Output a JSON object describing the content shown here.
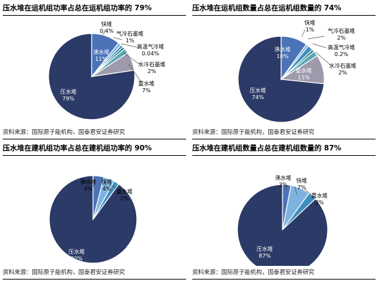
{
  "source_note": "资料来源：国际原子能机构，国泰君安证券研究",
  "chart_data": [
    {
      "type": "pie",
      "title": "压水堆在运机组功率占总在运机组功率的 79%",
      "slices": [
        {
          "name": "压水堆",
          "value": 79,
          "display": "79%",
          "color": "#2b3a66"
        },
        {
          "name": "沸水堆",
          "value": 11,
          "display": "11%",
          "color": "#4a73b8"
        },
        {
          "name": "快堆",
          "value": 0.4,
          "display": "0.4%",
          "color": "#7eb3df"
        },
        {
          "name": "气冷石墨堆",
          "value": 1,
          "display": "1%",
          "color": "#3d8fbf"
        },
        {
          "name": "高温气冷堆",
          "value": 0.04,
          "display": "0.04%",
          "color": "#1f6e7a"
        },
        {
          "name": "水冷石墨堆",
          "value": 2,
          "display": "2%",
          "color": "#5aa7b5"
        },
        {
          "name": "重水堆",
          "value": 7,
          "display": "7%",
          "color": "#9e9aac"
        }
      ]
    },
    {
      "type": "pie",
      "title": "压水堆在运机组数量占总在运机组数量的 74%",
      "slices": [
        {
          "name": "压水堆",
          "value": 74,
          "display": "74%",
          "color": "#2b3a66"
        },
        {
          "name": "沸水堆",
          "value": 10,
          "display": "10%",
          "color": "#4a73b8"
        },
        {
          "name": "快堆",
          "value": 1,
          "display": "1%",
          "color": "#7eb3df"
        },
        {
          "name": "气冷石墨堆",
          "value": 2,
          "display": "2%",
          "color": "#3d8fbf"
        },
        {
          "name": "高温气冷堆",
          "value": 0.2,
          "display": "0.2%",
          "color": "#1f6e7a"
        },
        {
          "name": "水冷石墨堆",
          "value": 2,
          "display": "2%",
          "color": "#5aa7b5"
        },
        {
          "name": "重水堆",
          "value": 11,
          "display": "11%",
          "color": "#9e9aac"
        }
      ]
    },
    {
      "type": "pie",
      "title": "压水堆在建机组功率占总在建机组功率的 90%",
      "slices": [
        {
          "name": "压水堆",
          "value": 90,
          "display": "90%",
          "color": "#2b3a66"
        },
        {
          "name": "沸水堆",
          "value": 4,
          "display": "4%",
          "color": "#4a73b8"
        },
        {
          "name": "快堆",
          "value": 4,
          "display": "4%",
          "color": "#7eb3df"
        },
        {
          "name": "重水堆",
          "value": 2,
          "display": "2%",
          "color": "#3d8fbf"
        }
      ]
    },
    {
      "type": "pie",
      "title": "压水堆在建机组数量占总在建机组数量的 87%",
      "slices": [
        {
          "name": "压水堆",
          "value": 87,
          "display": "87%",
          "color": "#2b3a66"
        },
        {
          "name": "沸水堆",
          "value": 3,
          "display": "3%",
          "color": "#4a73b8"
        },
        {
          "name": "快堆",
          "value": 7,
          "display": "7%",
          "color": "#7eb3df"
        },
        {
          "name": "重水堆",
          "value": 3,
          "display": "3%",
          "color": "#3d8fbf"
        }
      ]
    }
  ]
}
